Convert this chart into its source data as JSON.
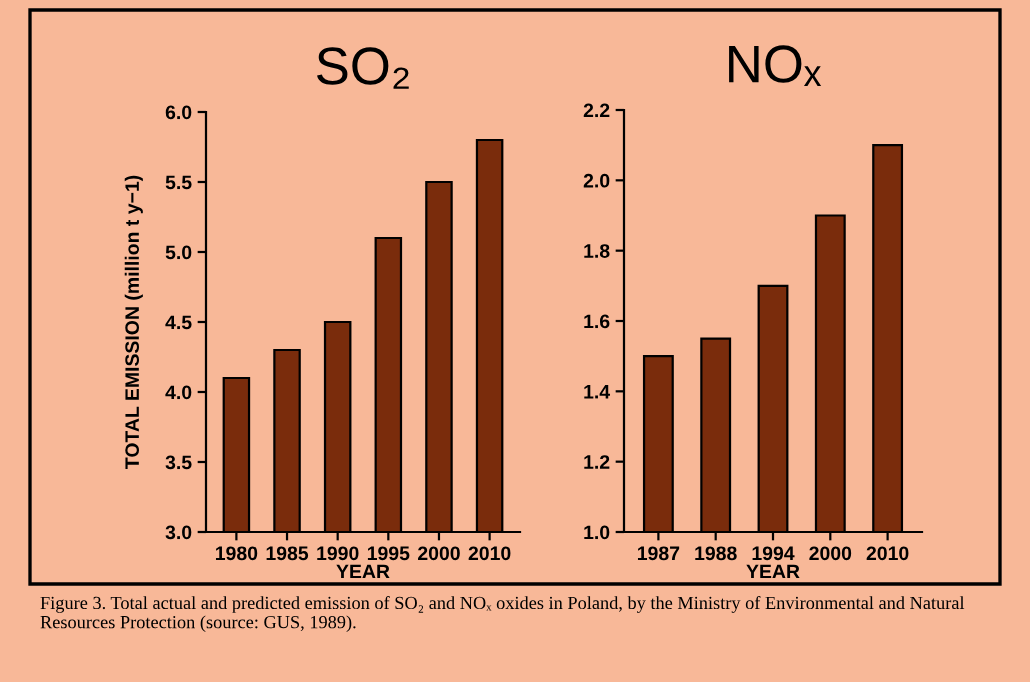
{
  "chart_data": [
    {
      "type": "bar",
      "title": "SO₂",
      "xlabel": "YEAR",
      "ylabel": "TOTAL EMISSION (million t y−1)",
      "categories": [
        "1980",
        "1985",
        "1990",
        "1995",
        "2000",
        "2010"
      ],
      "values": [
        4.1,
        4.3,
        4.5,
        5.1,
        5.5,
        5.8
      ],
      "color": "#7a2c0c",
      "ylim": [
        3.0,
        6.0
      ],
      "yticks": [
        {
          "value": 3.0,
          "label": "3.0"
        },
        {
          "value": 3.5,
          "label": "3.5"
        },
        {
          "value": 4.0,
          "label": "4.0"
        },
        {
          "value": 4.5,
          "label": "4.5"
        },
        {
          "value": 5.0,
          "label": "5.0"
        },
        {
          "value": 5.5,
          "label": "5.5"
        },
        {
          "value": 6.0,
          "label": "6.0"
        }
      ],
      "grid": false,
      "annotations": [
        "Figure 3. Total actual and predicted emission of SO₂ and NOₓ oxides in Poland, by the Ministry of Environmental and Natural Resources Protection (source: GUS, 1989)."
      ]
    },
    {
      "type": "bar",
      "title": "NOₓ",
      "xlabel": "YEAR",
      "categories": [
        "1987",
        "1988",
        "1994",
        "2000",
        "2010"
      ],
      "values": [
        1.5,
        1.55,
        1.7,
        1.9,
        2.1
      ],
      "color": "#7a2c0c",
      "ylim": [
        1.0,
        2.2
      ],
      "yticks": [
        {
          "value": 1.0,
          "label": "1.0"
        },
        {
          "value": 1.2,
          "label": "1.2"
        },
        {
          "value": 1.4,
          "label": "1.4"
        },
        {
          "value": 1.6,
          "label": "1.6"
        },
        {
          "value": 1.8,
          "label": "1.8"
        },
        {
          "value": 2.0,
          "label": "2.0"
        },
        {
          "value": 2.2,
          "label": "2.2"
        }
      ],
      "grid": false
    }
  ]
}
